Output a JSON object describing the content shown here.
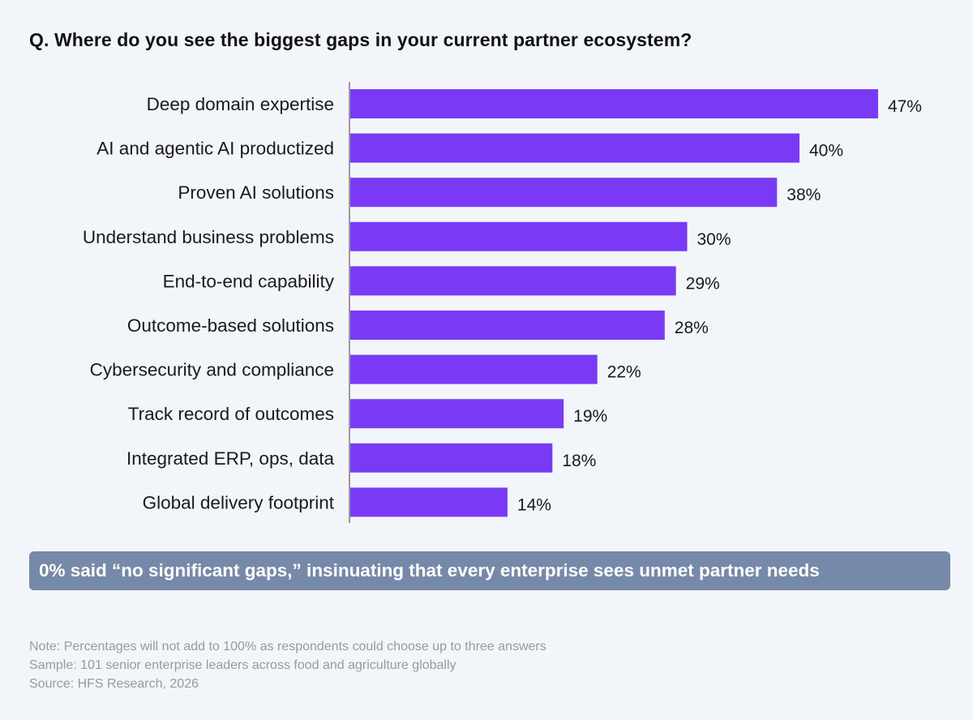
{
  "question": "Q. Where do you see the biggest gaps in your current partner ecosystem?",
  "colors": {
    "bar": "#7a3af5",
    "axis": "#999999",
    "background": "#f2f5f9",
    "callout_bg": "#7789a8"
  },
  "chart_data": {
    "type": "bar",
    "orientation": "horizontal",
    "title": "Q. Where do you see the biggest gaps in your current partner ecosystem?",
    "categories": [
      "Deep domain expertise",
      "AI and agentic AI productized",
      "Proven AI solutions",
      "Understand business problems",
      "End-to-end capability",
      "Outcome-based solutions",
      "Cybersecurity and compliance",
      "Track record of outcomes",
      "Integrated ERP, ops, data",
      "Global delivery footprint"
    ],
    "values": [
      47,
      40,
      38,
      30,
      29,
      28,
      22,
      19,
      18,
      14
    ],
    "value_labels": [
      "47%",
      "40%",
      "38%",
      "30%",
      "29%",
      "28%",
      "22%",
      "19%",
      "18%",
      "14%"
    ],
    "unit": "%",
    "xlim": [
      0,
      50
    ],
    "grid": false,
    "legend": "none"
  },
  "callout": {
    "text": "0% said “no significant gaps,” insinuating that every enterprise sees unmet partner needs"
  },
  "footnotes": {
    "note": "Note: Percentages will not add to 100% as respondents could choose up to three answers",
    "sample": "Sample: 101 senior enterprise leaders across food and agriculture globally",
    "source": "Source: HFS Research, 2026"
  }
}
